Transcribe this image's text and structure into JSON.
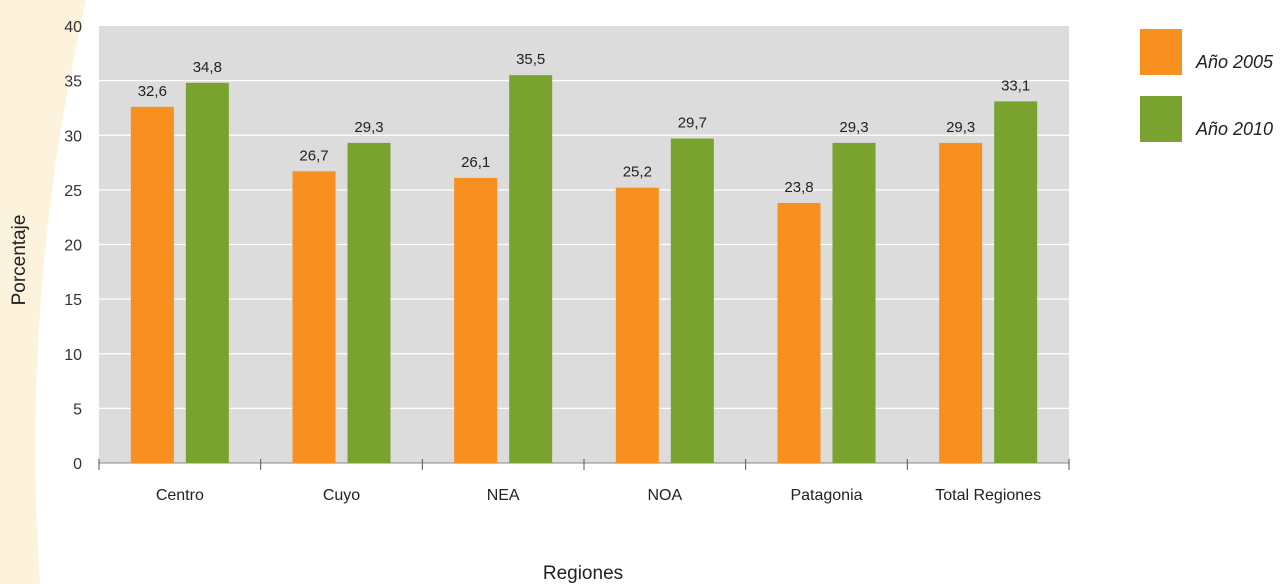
{
  "chart_data": {
    "type": "bar",
    "title": "",
    "xlabel": "Regiones",
    "ylabel": "Porcentaje",
    "ylim": [
      0,
      40
    ],
    "yticks": [
      0,
      5,
      10,
      15,
      20,
      25,
      30,
      35,
      40
    ],
    "grid": true,
    "legend_position": "top-right",
    "categories": [
      "Centro",
      "Cuyo",
      "NEA",
      "NOA",
      "Patagonia",
      "Total Regiones"
    ],
    "series": [
      {
        "name": "Año 2005",
        "color": "#f7901e",
        "values": [
          32.6,
          26.7,
          26.1,
          25.2,
          23.8,
          29.3
        ],
        "labels": [
          "32,6",
          "26,7",
          "26,1",
          "25,2",
          "23,8",
          "29,3"
        ]
      },
      {
        "name": "Año 2010",
        "color": "#7aa22f",
        "values": [
          34.8,
          29.3,
          35.5,
          29.7,
          29.3,
          33.1
        ],
        "labels": [
          "34,8",
          "29,3",
          "35,5",
          "29,7",
          "29,3",
          "33,1"
        ]
      }
    ],
    "colors": {
      "plot_background": "#dcdcdc",
      "gridline": "#ffffff",
      "side_accent": "#fdf3dc"
    }
  }
}
